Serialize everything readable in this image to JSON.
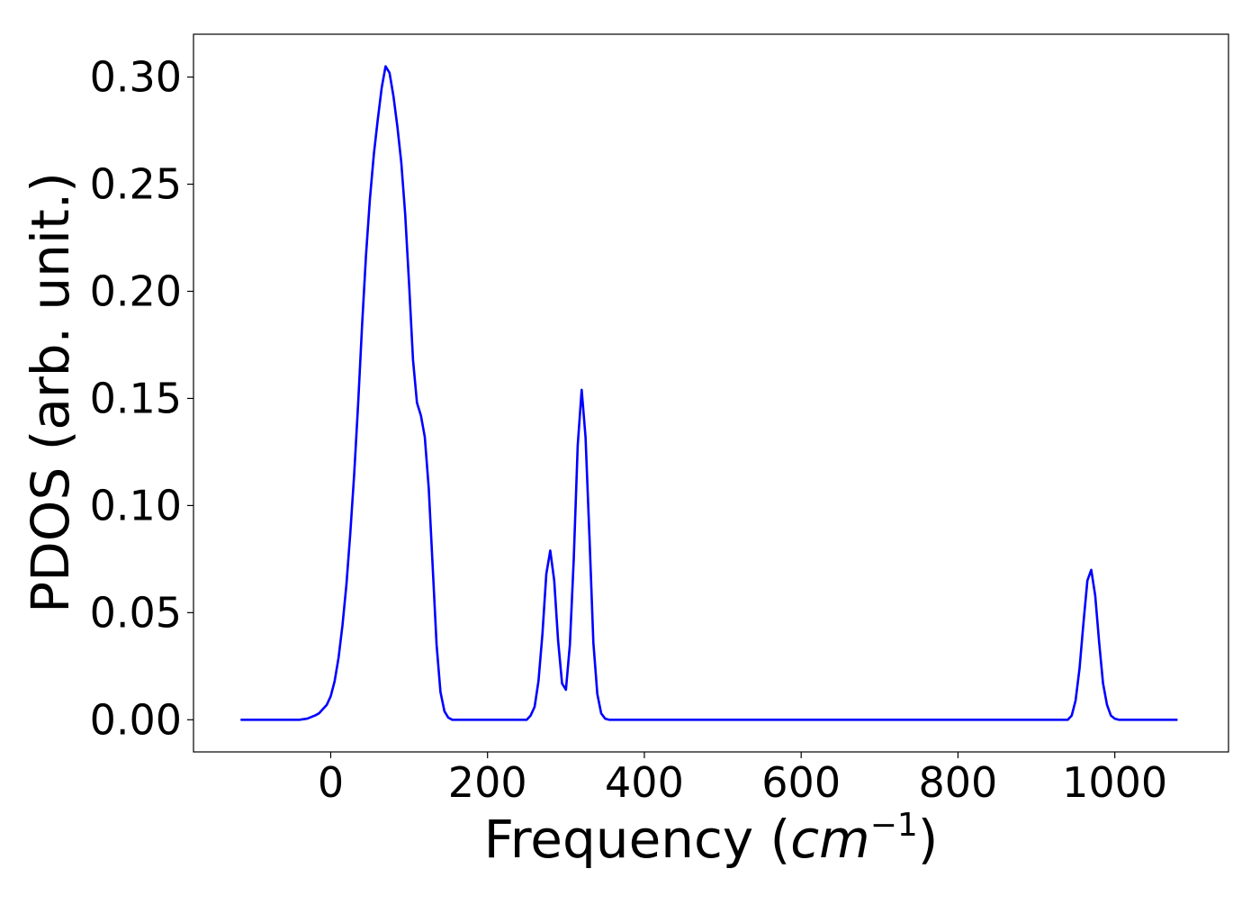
{
  "chart_data": {
    "type": "line",
    "title": "",
    "xlabel": "Frequency (",
    "xlabel_math_base": "cm",
    "xlabel_math_sup": "−1",
    "xlabel_suffix": ")",
    "ylabel": "PDOS (arb. unit.)",
    "xlim": [
      -175,
      1145
    ],
    "ylim": [
      -0.015,
      0.32
    ],
    "xticks": [
      0,
      200,
      400,
      600,
      800,
      1000
    ],
    "xtick_labels": [
      "0",
      "200",
      "400",
      "600",
      "800",
      "1000"
    ],
    "yticks": [
      0.0,
      0.05,
      0.1,
      0.15,
      0.2,
      0.25,
      0.3
    ],
    "ytick_labels": [
      "0.00",
      "0.05",
      "0.10",
      "0.15",
      "0.20",
      "0.25",
      "0.30"
    ],
    "grid": false,
    "line_color": "#0000ff",
    "series": [
      {
        "x": [
          -115,
          -40,
          -30,
          -20,
          -15,
          -10,
          -5,
          0,
          5,
          10,
          15,
          20,
          25,
          30,
          35,
          40,
          45,
          50,
          55,
          60,
          65,
          70,
          75,
          80,
          85,
          90,
          95,
          100,
          105,
          110,
          115,
          120,
          125,
          130,
          135,
          140,
          145,
          150,
          155,
          160,
          165,
          170,
          175,
          180,
          185,
          190,
          250,
          255,
          260,
          265,
          270,
          275,
          280,
          285,
          290,
          295,
          300,
          305,
          310,
          315,
          320,
          325,
          330,
          335,
          340,
          345,
          350,
          355,
          360,
          365,
          370,
          375,
          380,
          940,
          945,
          950,
          955,
          960,
          965,
          970,
          975,
          980,
          985,
          990,
          995,
          1000,
          1005,
          1010,
          1080
        ],
        "y": [
          0.0,
          0.0,
          0.0005,
          0.002,
          0.003,
          0.005,
          0.007,
          0.011,
          0.018,
          0.029,
          0.044,
          0.063,
          0.087,
          0.115,
          0.148,
          0.184,
          0.217,
          0.243,
          0.264,
          0.28,
          0.295,
          0.305,
          0.302,
          0.291,
          0.277,
          0.26,
          0.236,
          0.203,
          0.168,
          0.148,
          0.142,
          0.132,
          0.108,
          0.072,
          0.035,
          0.013,
          0.004,
          0.001,
          0.0,
          0.0,
          0.0,
          0.0,
          0.0,
          0.0,
          0.0,
          0.0,
          0.0,
          0.002,
          0.006,
          0.018,
          0.04,
          0.068,
          0.079,
          0.065,
          0.037,
          0.017,
          0.014,
          0.035,
          0.075,
          0.128,
          0.154,
          0.132,
          0.085,
          0.036,
          0.012,
          0.003,
          0.0005,
          0.0,
          0.0,
          0.0,
          0.0,
          0.0,
          0.0,
          0.0,
          0.002,
          0.009,
          0.024,
          0.045,
          0.065,
          0.07,
          0.058,
          0.036,
          0.017,
          0.007,
          0.002,
          0.0005,
          0.0,
          0.0,
          0.0
        ]
      }
    ]
  }
}
